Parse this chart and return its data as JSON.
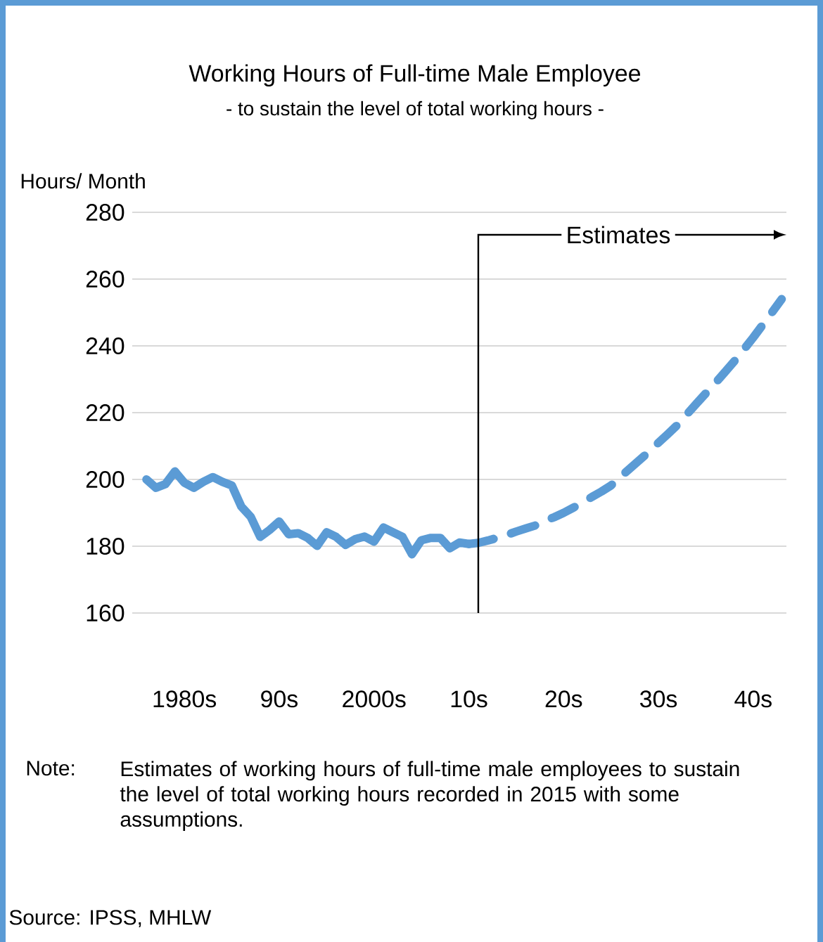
{
  "chart_data": {
    "type": "line",
    "title": "Working Hours of Full-time Male Employee",
    "subtitle": "- to sustain the level of total working hours -",
    "ylabel": "Hours/ Month",
    "categories": [
      null,
      null,
      null,
      null,
      "1980s",
      null,
      null,
      null,
      null,
      null,
      null,
      null,
      null,
      null,
      "90s",
      null,
      null,
      null,
      null,
      null,
      null,
      null,
      null,
      null,
      "2000s",
      null,
      null,
      null,
      null,
      null,
      null,
      null,
      null,
      null,
      "10s",
      null,
      null,
      null,
      null,
      null,
      null,
      null,
      null,
      null,
      "20s",
      null,
      null,
      null,
      null,
      null,
      null,
      null,
      null,
      null,
      "30s",
      null,
      null,
      null,
      null,
      null,
      null,
      null,
      null,
      null,
      "40s",
      null,
      null,
      null
    ],
    "ylim": [
      160,
      280
    ],
    "yticks": [
      160,
      180,
      200,
      220,
      240,
      260,
      280
    ],
    "grid": "y",
    "series": [
      {
        "color": "#5b9bd5",
        "marker": "none",
        "line_style": "solid",
        "values": [
          200,
          197.5,
          198.6,
          202.4,
          199,
          197.5,
          199.3,
          200.7,
          199.3,
          198.2,
          191.9,
          188.8,
          182.8,
          184.9,
          187.4,
          183.6,
          183.9,
          182.5,
          180.1,
          184.2,
          182.8,
          180.4,
          182.1,
          182.9,
          181.4,
          185.6,
          184.2,
          182.8,
          177.6,
          181.8,
          182.5,
          182.5,
          179.4,
          181.1,
          180.7,
          null,
          null,
          null,
          null,
          null,
          null,
          null,
          null,
          null,
          null,
          null,
          null,
          null,
          null,
          null,
          null,
          null,
          null,
          null,
          null,
          null,
          null,
          null,
          null,
          null,
          null,
          null,
          null,
          null,
          null,
          null,
          null,
          null
        ]
      },
      {
        "color": "#5b9bd5",
        "marker": "none",
        "line_style": "dashed",
        "values": [
          null,
          null,
          null,
          null,
          null,
          null,
          null,
          null,
          null,
          null,
          null,
          null,
          null,
          null,
          null,
          null,
          null,
          null,
          null,
          null,
          null,
          null,
          null,
          null,
          null,
          null,
          null,
          null,
          null,
          null,
          null,
          null,
          null,
          null,
          180.7,
          181,
          181.7,
          182.5,
          183.4,
          184.4,
          185.3,
          186.2,
          187.5,
          188.7,
          190,
          191.5,
          193,
          194.8,
          196.4,
          198.2,
          200.8,
          203.3,
          205.8,
          208.3,
          211,
          213.6,
          216.3,
          219.5,
          222.7,
          225.8,
          228.9,
          232.1,
          235.4,
          238.9,
          242.5,
          246.3,
          250.1,
          254
        ]
      }
    ],
    "annotations": [
      "Estimates",
      "Note:",
      "Estimates of working hours of full-time male employees to sustain the level of total working hours recorded in 2015 with some assumptions.",
      "Source: IPSS, MHLW"
    ]
  }
}
